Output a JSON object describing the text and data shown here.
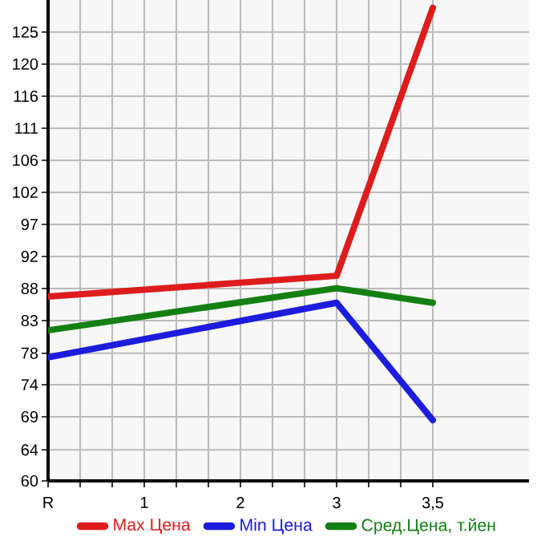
{
  "chart_data": {
    "type": "line",
    "categories": [
      "R",
      "1",
      "2",
      "3",
      "3,5"
    ],
    "ylim": [
      60,
      129.64
    ],
    "yticks": [
      {
        "value": 60,
        "label": "60"
      },
      {
        "value": 64.49,
        "label": "64"
      },
      {
        "value": 69.29,
        "label": "69"
      },
      {
        "value": 73.93,
        "label": "74"
      },
      {
        "value": 78.49,
        "label": "78"
      },
      {
        "value": 83.21,
        "label": "83"
      },
      {
        "value": 87.86,
        "label": "88"
      },
      {
        "value": 92.5,
        "label": "92"
      },
      {
        "value": 97.14,
        "label": "97"
      },
      {
        "value": 101.79,
        "label": "102"
      },
      {
        "value": 106.43,
        "label": "106"
      },
      {
        "value": 111.07,
        "label": "111"
      },
      {
        "value": 115.71,
        "label": "116"
      },
      {
        "value": 120.36,
        "label": "120"
      },
      {
        "value": 125,
        "label": "125"
      }
    ],
    "grid": true,
    "legend": "bottom",
    "marker": "none",
    "line_style": "solid",
    "series": [
      {
        "name": "Max Цена",
        "color": "#dd1c1c",
        "values": [
          86.7,
          null,
          null,
          89.7,
          128.5
        ]
      },
      {
        "name": "Min Цена",
        "color": "#1c1cdd",
        "values": [
          77.9,
          null,
          null,
          85.8,
          68.8
        ]
      },
      {
        "name": "Сред.Цена, т.йен",
        "color": "#138013",
        "values": [
          81.8,
          null,
          null,
          87.9,
          85.8
        ]
      }
    ]
  }
}
